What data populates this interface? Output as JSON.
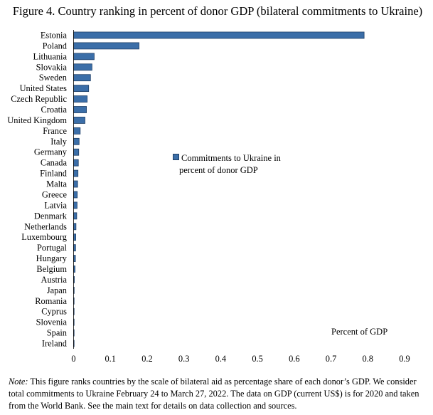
{
  "title": "Figure 4. Country ranking in percent of donor GDP (bilateral commitments to Ukraine)",
  "colors": {
    "bar": "#3b6ea8",
    "bar_edge": "#1f3f66"
  },
  "note": {
    "label": "Note:",
    "text": " This figure ranks countries by the scale of bilateral aid as percentage share of each donor’s GDP. We consider total commitments to Ukraine February 24 to March 27, 2022. The data on GDP (current US$) is for 2020 and taken from the World Bank. See the main text for details on data collection and sources."
  },
  "chart_data": {
    "type": "bar",
    "orientation": "horizontal",
    "title": "Figure 4. Country ranking in percent of donor GDP (bilateral commitments to Ukraine)",
    "xlabel": "Percent of GDP",
    "ylabel": "",
    "xlim": [
      0,
      0.9
    ],
    "xticks": [
      0,
      0.1,
      0.2,
      0.3,
      0.4,
      0.5,
      0.6,
      0.7,
      0.8,
      0.9
    ],
    "xtick_labels": [
      "0",
      "0.1",
      "0.2",
      "0.3",
      "0.4",
      "0.5",
      "0.6",
      "0.7",
      "0.8",
      "0.9"
    ],
    "legend": {
      "label_line1": "Commitments to Ukraine in",
      "label_line2": "percent of donor GDP",
      "position": "center"
    },
    "grid": false,
    "categories": [
      "Estonia",
      "Poland",
      "Lithuania",
      "Slovakia",
      "Sweden",
      "United States",
      "Czech Republic",
      "Croatia",
      "United Kingdom",
      "France",
      "Italy",
      "Germany",
      "Canada",
      "Finland",
      "Malta",
      "Greece",
      "Latvia",
      "Denmark",
      "Netherlands",
      "Luxembourg",
      "Portugal",
      "Hungary",
      "Belgium",
      "Austria",
      "Japan",
      "Romania",
      "Cyprus",
      "Slovenia",
      "Spain",
      "Ireland"
    ],
    "values": [
      0.79,
      0.178,
      0.056,
      0.05,
      0.046,
      0.041,
      0.037,
      0.035,
      0.031,
      0.018,
      0.015,
      0.014,
      0.013,
      0.012,
      0.011,
      0.01,
      0.0095,
      0.0085,
      0.0065,
      0.006,
      0.0055,
      0.005,
      0.004,
      0.002,
      0.0015,
      0.001,
      0.0008,
      0.0006,
      0.0004,
      0.0003
    ]
  }
}
